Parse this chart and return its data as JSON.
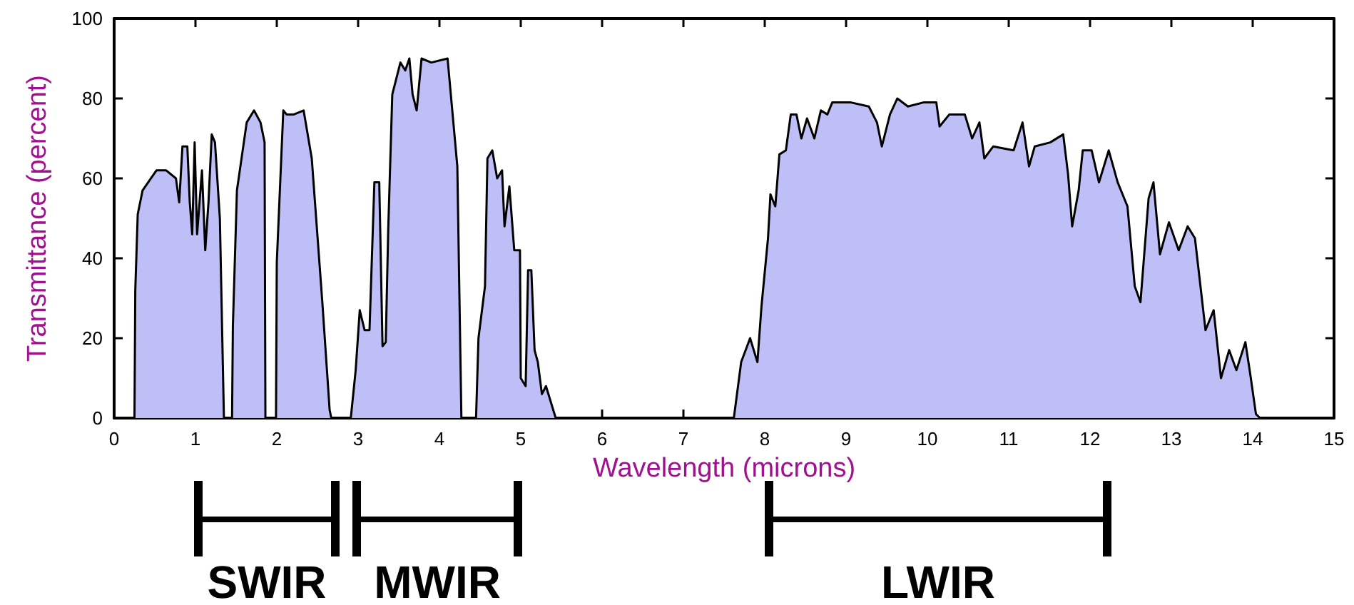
{
  "chart_data": {
    "type": "area",
    "xlabel": "Wavelength (microns)",
    "ylabel": "Transmittance (percent)",
    "xlim": [
      0,
      15
    ],
    "xticks": [
      0,
      1,
      2,
      3,
      4,
      5,
      6,
      7,
      8,
      9,
      10,
      11,
      12,
      13,
      14,
      15
    ],
    "ylim": [
      0,
      100
    ],
    "yticks": [
      0,
      20,
      40,
      60,
      80,
      100
    ],
    "grid": false,
    "line_style": "solid",
    "marker": "none",
    "series": [
      {
        "color": "#bfbff8",
        "x": [
          0,
          0.25,
          0.26,
          0.29,
          0.35,
          0.52,
          0.64,
          0.76,
          0.8,
          0.84,
          0.9,
          0.93,
          0.96,
          0.99,
          1.02,
          1.08,
          1.12,
          1.16,
          1.2,
          1.24,
          1.3,
          1.35,
          1.45,
          1.46,
          1.51,
          1.63,
          1.72,
          1.8,
          1.85,
          1.86,
          1.99,
          2.0,
          2.08,
          2.12,
          2.21,
          2.33,
          2.43,
          2.56,
          2.65,
          2.67,
          2.91,
          2.97,
          3.02,
          3.08,
          3.14,
          3.2,
          3.26,
          3.3,
          3.34,
          3.37,
          3.42,
          3.52,
          3.58,
          3.63,
          3.67,
          3.72,
          3.78,
          3.9,
          4.1,
          4.22,
          4.27,
          4.45,
          4.48,
          4.56,
          4.59,
          4.65,
          4.71,
          4.77,
          4.8,
          4.86,
          4.92,
          4.99,
          5.0,
          5.06,
          5.09,
          5.13,
          5.17,
          5.21,
          5.26,
          5.31,
          5.43,
          7.62,
          7.71,
          7.82,
          7.91,
          7.96,
          8.04,
          8.07,
          8.13,
          8.18,
          8.26,
          8.32,
          8.39,
          8.45,
          8.52,
          8.61,
          8.69,
          8.77,
          8.83,
          9.06,
          9.28,
          9.38,
          9.44,
          9.54,
          9.63,
          9.76,
          9.95,
          10.11,
          10.15,
          10.27,
          10.46,
          10.55,
          10.64,
          10.7,
          10.81,
          11.06,
          11.17,
          11.25,
          11.32,
          11.51,
          11.67,
          11.73,
          11.78,
          11.86,
          11.91,
          12.02,
          12.11,
          12.23,
          12.34,
          12.46,
          12.55,
          12.62,
          12.72,
          12.78,
          12.86,
          12.97,
          13.09,
          13.2,
          13.29,
          13.42,
          13.52,
          13.61,
          13.71,
          13.8,
          13.91,
          13.97,
          14.04,
          14.09,
          15
        ],
        "values": [
          0,
          0,
          32,
          51,
          57,
          62,
          62,
          60,
          54,
          68,
          68,
          54,
          46,
          69,
          46,
          62,
          42,
          54,
          71,
          69,
          50,
          0,
          0,
          23,
          57,
          74,
          77,
          74,
          69,
          0,
          0,
          39,
          77,
          76,
          76,
          77,
          65,
          29,
          2,
          0,
          0,
          12,
          27,
          22,
          22,
          59,
          59,
          18,
          19,
          47,
          81,
          89,
          87,
          90,
          81,
          77,
          90,
          89,
          90,
          63,
          0,
          0,
          20,
          33,
          65,
          67,
          60,
          62,
          48,
          58,
          42,
          42,
          10,
          8,
          37,
          37,
          17,
          14,
          6,
          8,
          0,
          0,
          14,
          20,
          14,
          28,
          45,
          56,
          53,
          66,
          67,
          76,
          76,
          70,
          75,
          70,
          77,
          76,
          79,
          79,
          78,
          74,
          68,
          76,
          80,
          78,
          79,
          79,
          73,
          76,
          76,
          70,
          74,
          65,
          68,
          67,
          74,
          63,
          68,
          69,
          71,
          61,
          48,
          57,
          67,
          67,
          59,
          67,
          59,
          53,
          33,
          29,
          55,
          59,
          41,
          49,
          42,
          48,
          45,
          22,
          27,
          10,
          17,
          12,
          19,
          11,
          1,
          0,
          0
        ]
      }
    ],
    "annotations": [
      "SWIR",
      "MWIR",
      "LWIR"
    ]
  }
}
